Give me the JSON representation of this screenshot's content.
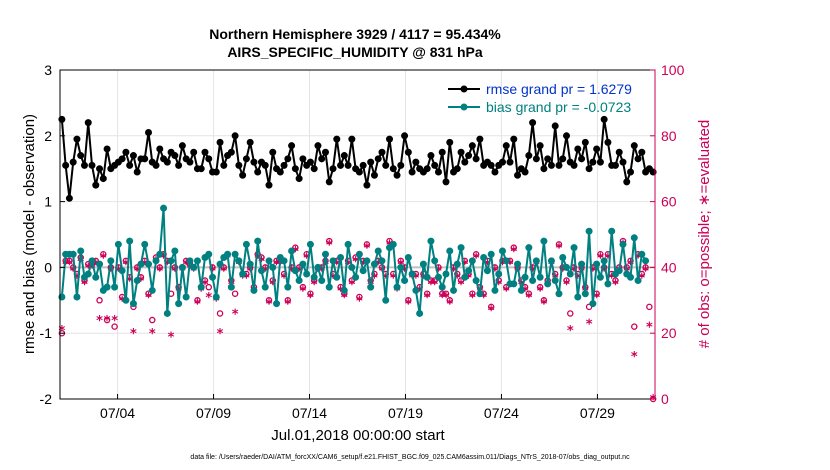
{
  "chart_data": {
    "type": "line",
    "title_line1": "Northern Hemisphere 3929 / 4117 = 95.434%",
    "title_line2": "AIRS_SPECIFIC_HUMIDITY @ 831 hPa",
    "ylabel_left": "rmse and bias (model - observation)",
    "ylabel_right": "# of obs: o=possible; ∗=evaluated",
    "xlabel": "Jul.01,2018 00:00:00 start",
    "footnote": "data file: /Users/raeder/DAI/ATM_forcXX/CAM6_setup/f.e21.FHIST_BGC.f09_025.CAM6assim.011/Diags_NTrS_2018-07/obs_diag_output.nc",
    "ylim_left": [
      -2,
      3
    ],
    "ylim_right": [
      0,
      100
    ],
    "xlim_days": [
      0,
      31
    ],
    "yticks_left": [
      "-2",
      "-1",
      "0",
      "1",
      "2",
      "3"
    ],
    "yticks_right": [
      "0",
      "20",
      "40",
      "60",
      "80",
      "100"
    ],
    "xtick_labels": [
      "07/04",
      "07/09",
      "07/14",
      "07/19",
      "07/24",
      "07/29"
    ],
    "xtick_days": [
      3,
      8,
      13,
      18,
      23,
      28
    ],
    "colors": {
      "rmse": "#000000",
      "bias": "#008080",
      "obs": "#cc0055",
      "zero_line": "#c0c0c0",
      "legend_rmse": "#0033cc"
    },
    "legend": [
      {
        "label": "rmse grand pr = 1.6279"
      },
      {
        "label": "bias grand pr = -0.0723"
      }
    ],
    "rmse": [
      2.25,
      1.55,
      1.05,
      1.6,
      1.95,
      1.7,
      1.55,
      2.2,
      1.55,
      1.25,
      1.5,
      1.35,
      1.8,
      1.5,
      1.55,
      1.6,
      1.65,
      1.75,
      1.55,
      1.7,
      1.45,
      1.65,
      1.65,
      2.05,
      1.6,
      1.55,
      1.8,
      1.65,
      1.6,
      1.75,
      1.7,
      1.55,
      1.85,
      1.65,
      1.6,
      1.75,
      1.5,
      1.5,
      1.75,
      1.65,
      1.45,
      1.45,
      1.9,
      1.55,
      1.7,
      1.75,
      2.0,
      1.55,
      1.4,
      1.65,
      1.9,
      1.6,
      1.45,
      1.6,
      1.55,
      1.25,
      1.75,
      1.5,
      1.45,
      1.55,
      1.65,
      1.85,
      1.5,
      1.35,
      1.65,
      1.55,
      1.6,
      1.5,
      1.85,
      1.65,
      1.75,
      1.3,
      1.5,
      1.95,
      1.55,
      1.7,
      1.55,
      1.95,
      1.5,
      1.45,
      1.55,
      1.25,
      1.6,
      1.4,
      1.65,
      1.75,
      1.55,
      1.95,
      1.5,
      1.4,
      1.55,
      2.0,
      1.75,
      1.45,
      1.6,
      1.5,
      1.45,
      1.5,
      1.7,
      1.55,
      1.45,
      1.75,
      1.3,
      1.9,
      1.45,
      1.5,
      1.75,
      1.6,
      1.7,
      1.85,
      1.65,
      1.95,
      1.55,
      1.6,
      1.55,
      1.45,
      1.55,
      1.6,
      1.85,
      1.6,
      1.95,
      1.4,
      1.5,
      1.45,
      1.7,
      2.2,
      1.65,
      1.85,
      1.5,
      1.65,
      1.55,
      2.15,
      1.55,
      1.65,
      2.0,
      1.6,
      1.55,
      1.8,
      1.65,
      1.9,
      1.5,
      1.6,
      1.8,
      1.6,
      2.25,
      1.9,
      1.55,
      1.55,
      1.75,
      1.6,
      1.3,
      1.45,
      1.85,
      1.65,
      1.75,
      1.45,
      1.5,
      1.45
    ],
    "bias": [
      -0.45,
      0.2,
      0.2,
      0.2,
      -0.45,
      0.25,
      -0.15,
      -0.1,
      0.1,
      -0.15,
      0.05,
      -0.35,
      -0.3,
      0.1,
      -0.3,
      0.35,
      -0.05,
      -0.5,
      0.4,
      -0.55,
      -0.2,
      0.05,
      0.35,
      0.05,
      -0.35,
      0.1,
      0.2,
      0.9,
      -0.7,
      0.1,
      0.25,
      -0.55,
      0.0,
      -0.45,
      0.1,
      0.0,
      0.1,
      -0.3,
      0.15,
      0.2,
      -0.15,
      -0.45,
      0.05,
      0.15,
      0.2,
      -0.3,
      0.2,
      0.1,
      -0.1,
      0.35,
      0.05,
      -0.35,
      0.4,
      -0.05,
      -0.3,
      0.1,
      0.0,
      -0.55,
      0.15,
      0.1,
      -0.3,
      0.25,
      -0.05,
      -0.2,
      0.05,
      -0.1,
      0.35,
      -0.15,
      0.0,
      -0.2,
      0.2,
      -0.3,
      0.1,
      -0.15,
      0.15,
      -0.35,
      0.35,
      0.0,
      -0.15,
      0.2,
      -0.05,
      0.1,
      -0.3,
      0.05,
      0.25,
      0.1,
      -0.5,
      0.3,
      0.35,
      -0.3,
      0.0,
      -0.2,
      0.15,
      -0.1,
      -0.35,
      -0.7,
      0.05,
      -0.15,
      0.4,
      0.1,
      -0.15,
      -0.3,
      -0.1,
      0.25,
      -0.35,
      0.05,
      0.3,
      -0.15,
      -0.05,
      0.1,
      -0.2,
      -0.4,
      0.15,
      -0.05,
      0.2,
      -0.35,
      -0.1,
      0.25,
      0.1,
      -0.25,
      -0.25,
      0.05,
      -0.35,
      -0.15,
      0.3,
      -0.2,
      0.1,
      -0.15,
      0.4,
      -0.25,
      0.1,
      -0.2,
      -0.4,
      0.15,
      0.0,
      -0.1,
      0.3,
      -0.45,
      0.05,
      -0.4,
      0.55,
      -0.55,
      0.05,
      -0.15,
      0.1,
      -0.25,
      0.55,
      -0.1,
      -0.05,
      0.35,
      -0.1,
      -0.15,
      0.45,
      -0.2,
      0.2,
      0.1
    ],
    "obs_possible": [
      20,
      42,
      42,
      40,
      38,
      43,
      36,
      41,
      41,
      42,
      30,
      44,
      24,
      40,
      22,
      40,
      31,
      42,
      37,
      28,
      40,
      37,
      42,
      32,
      24,
      43,
      40,
      44,
      42,
      32,
      40,
      34,
      40,
      42,
      41,
      40,
      30,
      34,
      36,
      34,
      40,
      31,
      26,
      40,
      44,
      36,
      32,
      42,
      38,
      38,
      40,
      34,
      44,
      43,
      40,
      30,
      36,
      42,
      42,
      38,
      30,
      40,
      46,
      40,
      34,
      44,
      32,
      36,
      40,
      40,
      42,
      48,
      38,
      42,
      34,
      32,
      42,
      36,
      43,
      31,
      42,
      47,
      36,
      38,
      42,
      40,
      38,
      48,
      38,
      34,
      42,
      40,
      30,
      38,
      38,
      34,
      38,
      32,
      36,
      36,
      40,
      32,
      32,
      30,
      40,
      38,
      36,
      42,
      38,
      32,
      44,
      34,
      32,
      42,
      28,
      40,
      36,
      42,
      34,
      42,
      46,
      40,
      36,
      34,
      32,
      40,
      42,
      34,
      30,
      36,
      42,
      38,
      47,
      40,
      36,
      26,
      40,
      38,
      40,
      34,
      28,
      40,
      32,
      44,
      40,
      44,
      38,
      36,
      40,
      48,
      40,
      42,
      22,
      44,
      38,
      40,
      28,
      0
    ],
    "obs_evaluated": [
      21,
      41,
      41,
      39,
      37,
      42,
      35,
      40,
      40,
      41,
      24,
      43,
      24,
      39,
      24,
      39,
      30,
      41,
      36,
      20,
      39,
      36,
      41,
      31,
      20,
      42,
      39,
      43,
      41,
      19,
      39,
      33,
      39,
      41,
      40,
      39,
      29,
      33,
      35,
      31,
      39,
      30,
      20,
      39,
      43,
      35,
      26,
      41,
      37,
      37,
      39,
      33,
      43,
      42,
      39,
      29,
      35,
      41,
      41,
      37,
      29,
      39,
      45,
      39,
      33,
      43,
      31,
      35,
      39,
      39,
      41,
      47,
      37,
      41,
      33,
      31,
      41,
      35,
      42,
      30,
      41,
      46,
      35,
      37,
      41,
      39,
      37,
      47,
      37,
      33,
      41,
      39,
      29,
      37,
      37,
      33,
      37,
      31,
      35,
      35,
      39,
      31,
      31,
      29,
      39,
      37,
      35,
      41,
      37,
      31,
      43,
      33,
      31,
      41,
      27,
      39,
      35,
      41,
      33,
      41,
      45,
      39,
      35,
      33,
      31,
      39,
      41,
      33,
      29,
      35,
      41,
      37,
      46,
      39,
      35,
      21,
      39,
      37,
      39,
      33,
      23,
      39,
      31,
      43,
      39,
      43,
      37,
      35,
      39,
      47,
      39,
      41,
      13,
      43,
      37,
      39,
      22,
      0
    ]
  }
}
